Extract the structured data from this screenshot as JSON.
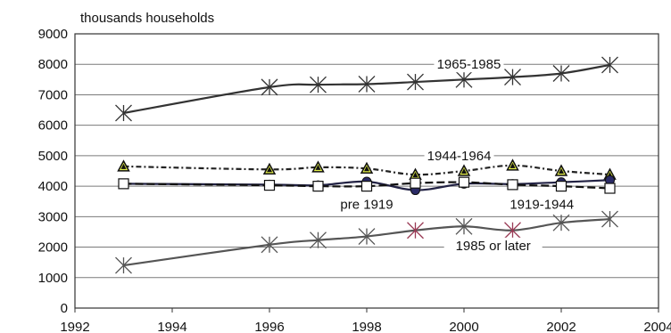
{
  "chart_data": {
    "type": "line",
    "unit_label": "thousands households",
    "xlim": [
      1992,
      2004
    ],
    "ylim": [
      0,
      9000
    ],
    "x_ticks": [
      1992,
      1994,
      1996,
      1998,
      2000,
      2002,
      2004
    ],
    "y_ticks": [
      0,
      1000,
      2000,
      3000,
      4000,
      5000,
      6000,
      7000,
      8000,
      9000
    ],
    "grid": "horizontal",
    "series": [
      {
        "name": "1965-1985",
        "color": "#333333",
        "marker": "star",
        "x": [
          1993,
          1996,
          1997,
          1998,
          1999,
          2000,
          2001,
          2002,
          2003
        ],
        "y": [
          6400,
          7250,
          7330,
          7350,
          7420,
          7500,
          7580,
          7700,
          7980
        ]
      },
      {
        "name": "1944-1964",
        "color": "#222222",
        "marker": "triangle",
        "marker_fill": "#e4f04a",
        "dash": "6,3,2,3",
        "x": [
          1993,
          1996,
          1997,
          1998,
          1999,
          2000,
          2001,
          2002,
          2003
        ],
        "y": [
          4650,
          4550,
          4620,
          4580,
          4380,
          4500,
          4680,
          4500,
          4380
        ]
      },
      {
        "name": "pre 1919",
        "color": "#222244",
        "marker": "circle",
        "marker_fill": "#2a2a66",
        "x": [
          1993,
          1996,
          1997,
          1998,
          1999,
          2000,
          2001,
          2002,
          2003
        ],
        "y": [
          4080,
          4050,
          4030,
          4150,
          3870,
          4080,
          4070,
          4130,
          4200
        ]
      },
      {
        "name": "1919-1944",
        "color": "#111111",
        "marker": "square",
        "marker_fill": "#ffffff",
        "dash": "9,4",
        "x": [
          1993,
          1996,
          1997,
          1998,
          1999,
          2000,
          2001,
          2002,
          2003
        ],
        "y": [
          4080,
          4030,
          4000,
          4000,
          4100,
          4130,
          4050,
          4000,
          3930
        ]
      },
      {
        "name": "1985 or later",
        "color": "#555555",
        "marker": "star",
        "marker_color_alt": "#9a3a55",
        "x": [
          1993,
          1996,
          1997,
          1998,
          1999,
          2000,
          2001,
          2002,
          2003
        ],
        "y": [
          1400,
          2080,
          2230,
          2350,
          2550,
          2680,
          2550,
          2800,
          2920
        ]
      }
    ],
    "annotations": [
      {
        "text": "1965-1985",
        "series": "1965-1985",
        "at_x": 2000.1,
        "at_y": 8000
      },
      {
        "text": "1944-1964",
        "series": "1944-1964",
        "at_x": 1999.9,
        "at_y": 5000
      },
      {
        "text": "pre 1919",
        "series": "pre 1919",
        "at_x": 1998.0,
        "at_y": 3400
      },
      {
        "text": "1919-1944",
        "series": "1919-1944",
        "at_x": 2001.6,
        "at_y": 3400
      },
      {
        "text": "1985 or later",
        "series": "1985 or later",
        "at_x": 2000.6,
        "at_y": 2050
      }
    ]
  }
}
